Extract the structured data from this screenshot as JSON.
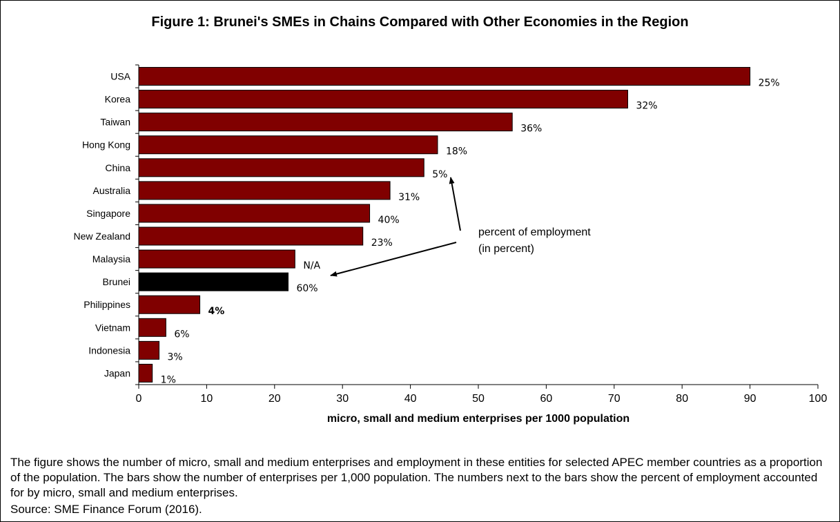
{
  "figure": {
    "title": "Figure 1: Brunei's SMEs in Chains Compared with Other Economies in the Region",
    "caption": "The figure shows the number of micro, small and medium enterprises and employment in these entities for selected APEC member countries as a proportion of the population. The bars show the number of enterprises per 1,000 population. The numbers next to the bars show the percent of employment accounted for by micro, small and medium enterprises.",
    "source": "Source: SME Finance Forum (2016)."
  },
  "chart_data": {
    "type": "bar",
    "orientation": "horizontal",
    "title": "Figure 1: Brunei's SMEs in Chains Compared with Other Economies in the Region",
    "xlabel": "micro, small and medium enterprises per 1000 population",
    "ylabel": "",
    "xlim": [
      0,
      100
    ],
    "xticks": [
      0,
      10,
      20,
      30,
      40,
      50,
      60,
      70,
      80,
      90,
      100
    ],
    "grid": false,
    "categories": [
      "USA",
      "Korea",
      "Taiwan",
      "Hong Kong",
      "China",
      "Australia",
      "Singapore",
      "New Zealand",
      "Malaysia",
      "Brunei",
      "Philippines",
      "Vietnam",
      "Indonesia",
      "Japan"
    ],
    "values": [
      90,
      72,
      55,
      44,
      42,
      37,
      34,
      33,
      23,
      22,
      9,
      4,
      3,
      2
    ],
    "data_labels": [
      "25%",
      "32%",
      "36%",
      "18%",
      "5%",
      "31%",
      "40%",
      "23%",
      "N/A",
      "60%",
      "4%",
      "6%",
      "3%",
      "1%"
    ],
    "bold_labels": [
      "Philippines"
    ],
    "highlight": "Brunei",
    "colors": {
      "bar": "#800000",
      "highlight": "#000000"
    },
    "annotation": {
      "lines": [
        "percent of employment",
        "(in percent)"
      ]
    }
  }
}
